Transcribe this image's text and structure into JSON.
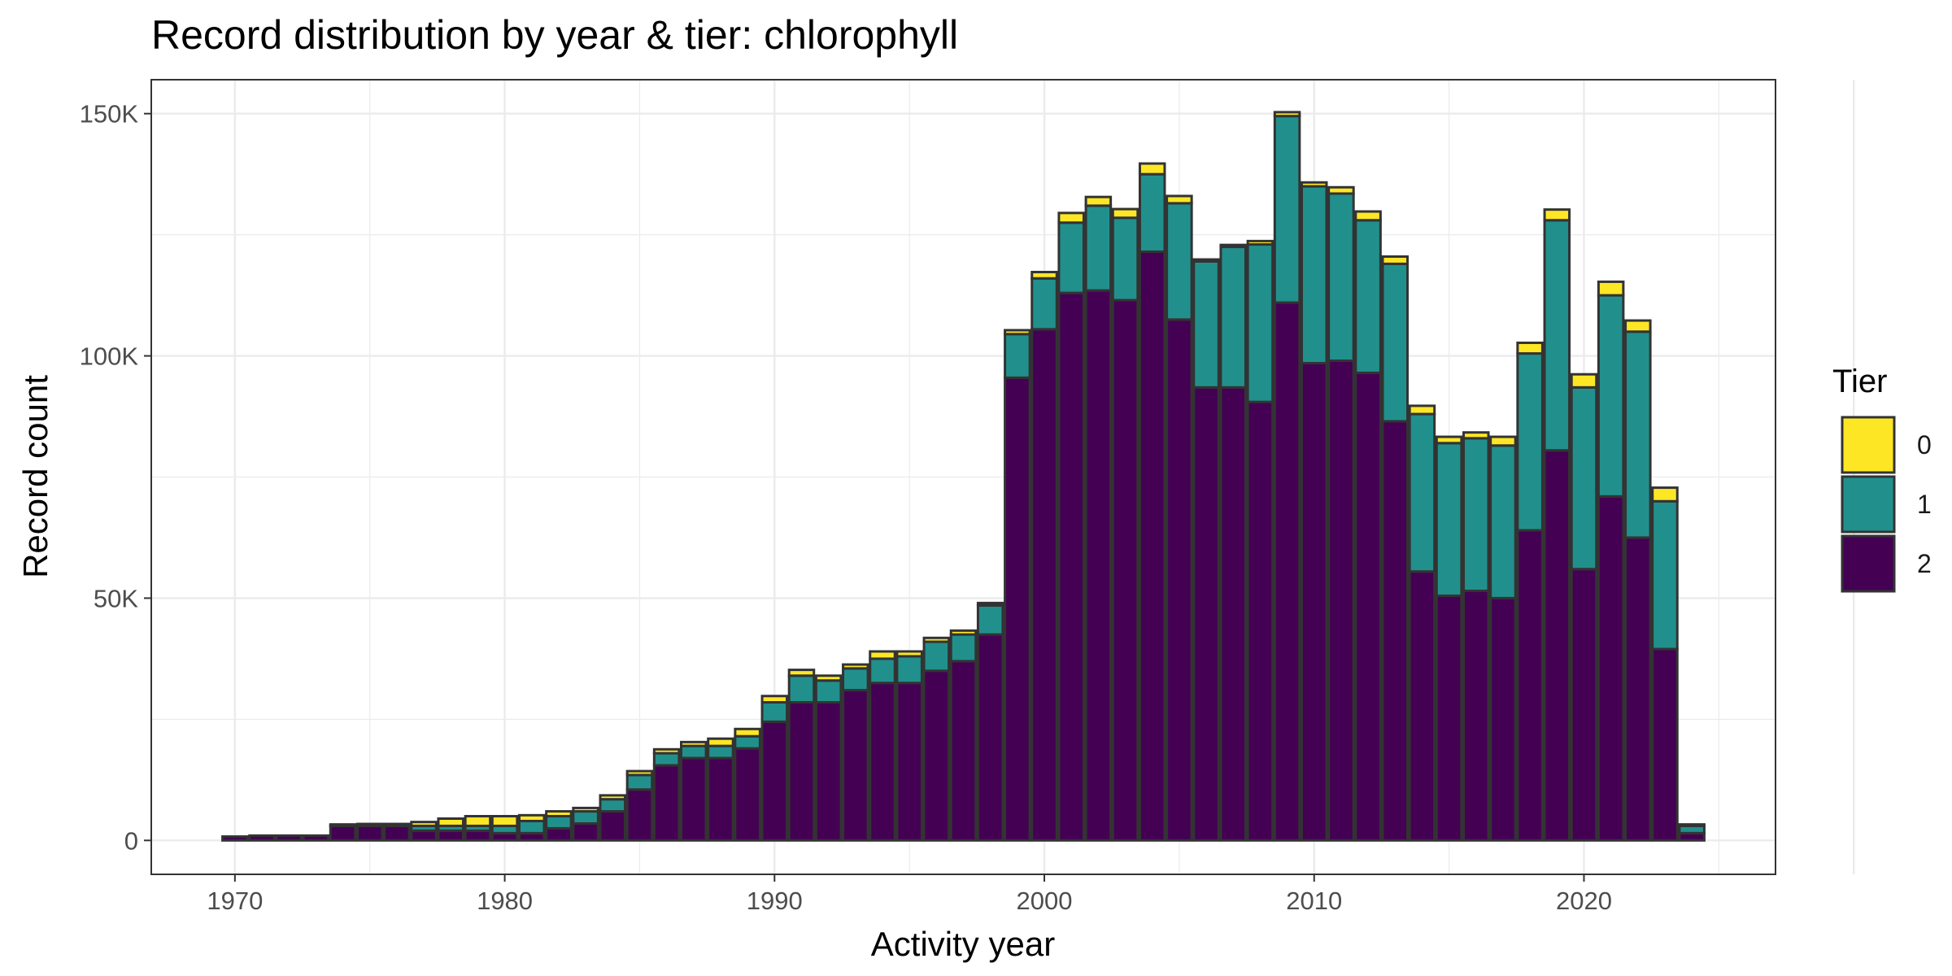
{
  "chart_data": {
    "type": "bar",
    "stacked": true,
    "title": "Record distribution by year & tier: chlorophyll",
    "xlabel": "Activity year",
    "ylabel": "Record count",
    "x": [
      1970,
      1971,
      1972,
      1973,
      1974,
      1975,
      1976,
      1977,
      1978,
      1979,
      1980,
      1981,
      1982,
      1983,
      1984,
      1985,
      1986,
      1987,
      1988,
      1989,
      1990,
      1991,
      1992,
      1993,
      1994,
      1995,
      1996,
      1997,
      1998,
      1999,
      2000,
      2001,
      2002,
      2003,
      2004,
      2005,
      2006,
      2007,
      2008,
      2009,
      2010,
      2011,
      2012,
      2013,
      2014,
      2015,
      2016,
      2017,
      2018,
      2019,
      2020,
      2021,
      2022,
      2023,
      2024
    ],
    "xlim": [
      1966.9,
      2027.1
    ],
    "ylim": [
      -7000,
      157000
    ],
    "xticks": [
      1970,
      1980,
      1990,
      2000,
      2010,
      2020
    ],
    "xtick_labels": [
      "1970",
      "1980",
      "1990",
      "2000",
      "2010",
      "2020"
    ],
    "yticks": [
      0,
      50000,
      100000,
      150000
    ],
    "ytick_labels": [
      "0",
      "50K",
      "100K",
      "150K"
    ],
    "grid": true,
    "legend": {
      "title": "Tier",
      "position": "right"
    },
    "series": [
      {
        "name": "2",
        "color": "#440154",
        "values": [
          800,
          1000,
          1000,
          1000,
          3000,
          3000,
          3000,
          2000,
          2000,
          2000,
          1500,
          1500,
          2500,
          3500,
          6000,
          10500,
          15500,
          17000,
          17000,
          19000,
          24500,
          28500,
          28500,
          31000,
          32500,
          32500,
          35000,
          37000,
          42500,
          95500,
          105500,
          113000,
          113500,
          111500,
          121500,
          107500,
          93500,
          93500,
          90500,
          111000,
          98500,
          99000,
          96500,
          86500,
          55500,
          50500,
          51500,
          50000,
          64000,
          80500,
          56000,
          71000,
          62500,
          39500,
          1500
        ]
      },
      {
        "name": "1",
        "color": "#21908C",
        "values": [
          0,
          0,
          0,
          0,
          300,
          400,
          400,
          1000,
          1000,
          1000,
          1500,
          2500,
          2500,
          2500,
          2500,
          3000,
          2500,
          2500,
          2500,
          2500,
          4000,
          5500,
          4500,
          4500,
          5000,
          5500,
          6000,
          5500,
          6000,
          9000,
          10500,
          14500,
          17500,
          17000,
          16000,
          24000,
          26000,
          29000,
          32500,
          38500,
          36500,
          34500,
          31500,
          32500,
          32500,
          31500,
          31500,
          31500,
          36500,
          47500,
          37500,
          41500,
          42500,
          30500,
          1500
        ]
      },
      {
        "name": "0",
        "color": "#FDE725",
        "values": [
          0,
          0,
          0,
          0,
          0,
          0,
          0,
          800,
          1500,
          2000,
          2000,
          1200,
          1000,
          700,
          800,
          800,
          800,
          800,
          1500,
          1500,
          1300,
          1200,
          1000,
          800,
          1500,
          1000,
          800,
          800,
          500,
          800,
          1300,
          2000,
          1800,
          1800,
          2200,
          1500,
          400,
          400,
          700,
          800,
          800,
          1300,
          1800,
          1500,
          1700,
          1300,
          1200,
          1800,
          2200,
          2200,
          2700,
          2800,
          2300,
          2800,
          300
        ]
      }
    ]
  }
}
